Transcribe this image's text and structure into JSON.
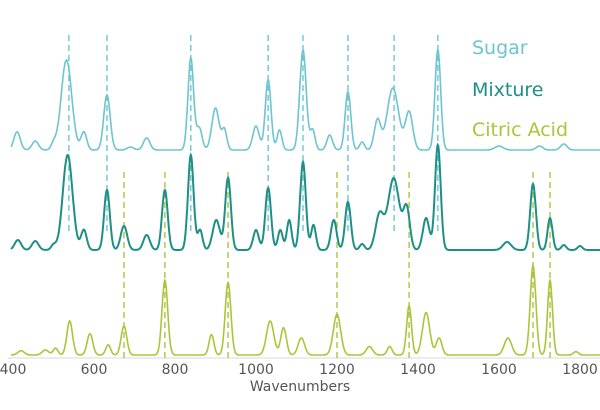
{
  "chart_data": {
    "type": "line",
    "title": "",
    "xlabel": "Wavenumbers",
    "ylabel": "",
    "xlim": [
      400,
      1850
    ],
    "xticks": [
      "400",
      "600",
      "800",
      "1000",
      "1200",
      "1400",
      "1600",
      "1800"
    ],
    "grid": false,
    "legend_placement": "top-right",
    "series": [
      {
        "name": "Sugar",
        "color": "#6cc5d1",
        "marker_lines": [
          538,
          632,
          839,
          1030,
          1116,
          1227,
          1341,
          1449
        ],
        "peaks": [
          [
            410,
            0.18,
            8
          ],
          [
            455,
            0.09,
            8
          ],
          [
            500,
            0.06,
            6
          ],
          [
            532,
            0.9,
            13
          ],
          [
            575,
            0.18,
            7
          ],
          [
            632,
            0.55,
            8
          ],
          [
            690,
            0.03,
            8
          ],
          [
            730,
            0.12,
            8
          ],
          [
            839,
            0.92,
            7
          ],
          [
            860,
            0.22,
            7
          ],
          [
            900,
            0.42,
            9
          ],
          [
            922,
            0.2,
            6
          ],
          [
            1000,
            0.24,
            8
          ],
          [
            1030,
            0.7,
            7
          ],
          [
            1058,
            0.2,
            6
          ],
          [
            1116,
            1.0,
            8
          ],
          [
            1140,
            0.2,
            6
          ],
          [
            1182,
            0.15,
            7
          ],
          [
            1227,
            0.58,
            7
          ],
          [
            1262,
            0.08,
            6
          ],
          [
            1300,
            0.3,
            8
          ],
          [
            1338,
            0.62,
            14
          ],
          [
            1378,
            0.38,
            9
          ],
          [
            1449,
            1.0,
            7
          ],
          [
            1600,
            0.04,
            10
          ],
          [
            1700,
            0.04,
            8
          ],
          [
            1760,
            0.06,
            8
          ]
        ]
      },
      {
        "name": "Mixture",
        "color": "#1e8f87",
        "marker_lines": [],
        "peaks": [
          [
            412,
            0.1,
            8
          ],
          [
            455,
            0.09,
            8
          ],
          [
            500,
            0.05,
            6
          ],
          [
            535,
            0.95,
            12
          ],
          [
            575,
            0.2,
            7
          ],
          [
            632,
            0.6,
            7
          ],
          [
            674,
            0.24,
            8
          ],
          [
            730,
            0.15,
            8
          ],
          [
            775,
            0.6,
            7
          ],
          [
            839,
            0.95,
            7
          ],
          [
            862,
            0.2,
            6
          ],
          [
            902,
            0.3,
            9
          ],
          [
            931,
            0.72,
            7
          ],
          [
            1000,
            0.2,
            7
          ],
          [
            1030,
            0.62,
            7
          ],
          [
            1060,
            0.2,
            6
          ],
          [
            1082,
            0.3,
            6
          ],
          [
            1116,
            0.88,
            7
          ],
          [
            1142,
            0.25,
            6
          ],
          [
            1192,
            0.3,
            7
          ],
          [
            1227,
            0.48,
            7
          ],
          [
            1262,
            0.06,
            6
          ],
          [
            1305,
            0.35,
            10
          ],
          [
            1340,
            0.72,
            14
          ],
          [
            1372,
            0.4,
            8
          ],
          [
            1420,
            0.32,
            8
          ],
          [
            1449,
            1.05,
            7
          ],
          [
            1620,
            0.08,
            10
          ],
          [
            1684,
            0.66,
            7
          ],
          [
            1726,
            0.32,
            6
          ],
          [
            1760,
            0.05,
            6
          ],
          [
            1800,
            0.04,
            6
          ]
        ]
      },
      {
        "name": "Citric Acid",
        "color": "#a9c63b",
        "marker_lines": [
          674,
          775,
          931,
          1200,
          1378,
          1684,
          1726
        ],
        "peaks": [
          [
            420,
            0.05,
            8
          ],
          [
            480,
            0.06,
            8
          ],
          [
            505,
            0.08,
            6
          ],
          [
            540,
            0.4,
            7
          ],
          [
            590,
            0.25,
            7
          ],
          [
            635,
            0.12,
            6
          ],
          [
            674,
            0.34,
            7
          ],
          [
            775,
            0.88,
            7
          ],
          [
            890,
            0.24,
            6
          ],
          [
            931,
            0.85,
            7
          ],
          [
            1035,
            0.4,
            9
          ],
          [
            1068,
            0.32,
            7
          ],
          [
            1112,
            0.2,
            8
          ],
          [
            1200,
            0.48,
            9
          ],
          [
            1280,
            0.1,
            8
          ],
          [
            1330,
            0.1,
            6
          ],
          [
            1378,
            0.58,
            6
          ],
          [
            1420,
            0.5,
            9
          ],
          [
            1452,
            0.2,
            7
          ],
          [
            1622,
            0.2,
            9
          ],
          [
            1684,
            1.05,
            7
          ],
          [
            1726,
            0.88,
            6
          ],
          [
            1790,
            0.04,
            6
          ]
        ]
      }
    ]
  }
}
